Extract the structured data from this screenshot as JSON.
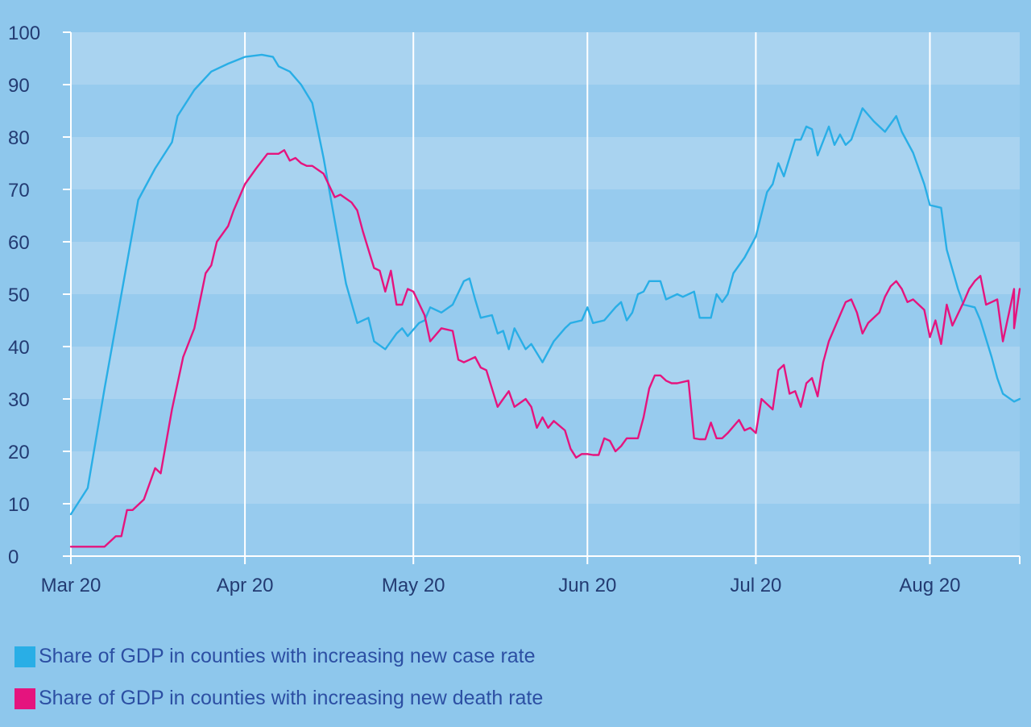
{
  "chart_data": {
    "type": "line",
    "title": "",
    "xlabel": "",
    "ylabel": "",
    "ylim": [
      0,
      100
    ],
    "yticks": [
      "0",
      "10",
      "20",
      "30",
      "40",
      "50",
      "60",
      "70",
      "80",
      "90",
      "100"
    ],
    "xticks": [
      "Mar 20",
      "Apr 20",
      "May 20",
      "Jun 20",
      "Jul 20",
      "Aug 20"
    ],
    "grid": "vertical lines at month starts, alternating horizontal bands",
    "legend_position": "bottom-left",
    "colors": {
      "background": "#8ec7ec",
      "band_light": "#a9d3f0",
      "band_dark": "#97cbee",
      "grid_line": "#ffffff",
      "case_series": "#29aee6",
      "death_series": "#e5147e",
      "text": "#233b72",
      "legend_text": "#2c4fa3"
    },
    "series": [
      {
        "name": "Share of GDP in counties with increasing new case rate",
        "color": "#29aee6",
        "points": [
          [
            "2020-03-01",
            8
          ],
          [
            "2020-03-04",
            13
          ],
          [
            "2020-03-07",
            32
          ],
          [
            "2020-03-10",
            50
          ],
          [
            "2020-03-13",
            68
          ],
          [
            "2020-03-16",
            74
          ],
          [
            "2020-03-19",
            79
          ],
          [
            "2020-03-20",
            84
          ],
          [
            "2020-03-23",
            89
          ],
          [
            "2020-03-26",
            92.5
          ],
          [
            "2020-03-29",
            94
          ],
          [
            "2020-04-01",
            95.3
          ],
          [
            "2020-04-04",
            95.7
          ],
          [
            "2020-04-06",
            95.3
          ],
          [
            "2020-04-07",
            93.5
          ],
          [
            "2020-04-09",
            92.5
          ],
          [
            "2020-04-11",
            90
          ],
          [
            "2020-04-13",
            86.5
          ],
          [
            "2020-04-15",
            76
          ],
          [
            "2020-04-17",
            64
          ],
          [
            "2020-04-19",
            52
          ],
          [
            "2020-04-21",
            44.5
          ],
          [
            "2020-04-23",
            45.5
          ],
          [
            "2020-04-24",
            41
          ],
          [
            "2020-04-26",
            39.5
          ],
          [
            "2020-04-28",
            42.5
          ],
          [
            "2020-04-29",
            43.5
          ],
          [
            "2020-04-30",
            42
          ],
          [
            "2020-05-02",
            44.5
          ],
          [
            "2020-05-03",
            45
          ],
          [
            "2020-05-04",
            47.5
          ],
          [
            "2020-05-06",
            46.5
          ],
          [
            "2020-05-08",
            48
          ],
          [
            "2020-05-10",
            52.5
          ],
          [
            "2020-05-11",
            53
          ],
          [
            "2020-05-12",
            49
          ],
          [
            "2020-05-13",
            45.5
          ],
          [
            "2020-05-15",
            46
          ],
          [
            "2020-05-16",
            42.5
          ],
          [
            "2020-05-17",
            43
          ],
          [
            "2020-05-18",
            39.5
          ],
          [
            "2020-05-19",
            43.5
          ],
          [
            "2020-05-21",
            39.5
          ],
          [
            "2020-05-22",
            40.5
          ],
          [
            "2020-05-24",
            37
          ],
          [
            "2020-05-26",
            41
          ],
          [
            "2020-05-28",
            43.5
          ],
          [
            "2020-05-29",
            44.5
          ],
          [
            "2020-05-31",
            45
          ],
          [
            "2020-06-01",
            47.5
          ],
          [
            "2020-06-02",
            44.5
          ],
          [
            "2020-06-04",
            45
          ],
          [
            "2020-06-06",
            47.5
          ],
          [
            "2020-06-07",
            48.5
          ],
          [
            "2020-06-08",
            45
          ],
          [
            "2020-06-09",
            46.5
          ],
          [
            "2020-06-10",
            50
          ],
          [
            "2020-06-11",
            50.5
          ],
          [
            "2020-06-12",
            52.5
          ],
          [
            "2020-06-14",
            52.5
          ],
          [
            "2020-06-15",
            49
          ],
          [
            "2020-06-17",
            50
          ],
          [
            "2020-06-18",
            49.5
          ],
          [
            "2020-06-20",
            50.5
          ],
          [
            "2020-06-21",
            45.5
          ],
          [
            "2020-06-23",
            45.5
          ],
          [
            "2020-06-24",
            50
          ],
          [
            "2020-06-25",
            48.5
          ],
          [
            "2020-06-26",
            50
          ],
          [
            "2020-06-27",
            54
          ],
          [
            "2020-06-29",
            57
          ],
          [
            "2020-07-01",
            61
          ],
          [
            "2020-07-03",
            69.5
          ],
          [
            "2020-07-04",
            71
          ],
          [
            "2020-07-05",
            75
          ],
          [
            "2020-07-06",
            72.5
          ],
          [
            "2020-07-07",
            76
          ],
          [
            "2020-07-08",
            79.5
          ],
          [
            "2020-07-09",
            79.5
          ],
          [
            "2020-07-10",
            82
          ],
          [
            "2020-07-11",
            81.5
          ],
          [
            "2020-07-12",
            76.5
          ],
          [
            "2020-07-14",
            82
          ],
          [
            "2020-07-15",
            78.5
          ],
          [
            "2020-07-16",
            80.5
          ],
          [
            "2020-07-17",
            78.5
          ],
          [
            "2020-07-18",
            79.5
          ],
          [
            "2020-07-20",
            85.5
          ],
          [
            "2020-07-22",
            83
          ],
          [
            "2020-07-24",
            81
          ],
          [
            "2020-07-26",
            84
          ],
          [
            "2020-07-27",
            81
          ],
          [
            "2020-07-29",
            77
          ],
          [
            "2020-07-31",
            71
          ],
          [
            "2020-08-01",
            67
          ],
          [
            "2020-08-03",
            66.5
          ],
          [
            "2020-08-04",
            58.5
          ],
          [
            "2020-08-06",
            51
          ],
          [
            "2020-08-07",
            48
          ],
          [
            "2020-08-09",
            47.5
          ],
          [
            "2020-08-10",
            45
          ],
          [
            "2020-08-12",
            38
          ],
          [
            "2020-08-13",
            34
          ],
          [
            "2020-08-14",
            31
          ],
          [
            "2020-08-16",
            29.5
          ],
          [
            "2020-08-17",
            30
          ]
        ]
      },
      {
        "name": "Share of GDP in counties with increasing new death rate",
        "color": "#e5147e",
        "points": [
          [
            "2020-03-01",
            1.8
          ],
          [
            "2020-03-07",
            1.8
          ],
          [
            "2020-03-09",
            3.8
          ],
          [
            "2020-03-10",
            3.8
          ],
          [
            "2020-03-11",
            8.8
          ],
          [
            "2020-03-12",
            8.8
          ],
          [
            "2020-03-14",
            10.8
          ],
          [
            "2020-03-16",
            16.8
          ],
          [
            "2020-03-17",
            15.8
          ],
          [
            "2020-03-19",
            28
          ],
          [
            "2020-03-21",
            38
          ],
          [
            "2020-03-23",
            43.5
          ],
          [
            "2020-03-25",
            54
          ],
          [
            "2020-03-26",
            55.5
          ],
          [
            "2020-03-27",
            60
          ],
          [
            "2020-03-29",
            63
          ],
          [
            "2020-03-30",
            66
          ],
          [
            "2020-04-01",
            71
          ],
          [
            "2020-04-03",
            74
          ],
          [
            "2020-04-05",
            76.8
          ],
          [
            "2020-04-06",
            76.8
          ],
          [
            "2020-04-07",
            76.8
          ],
          [
            "2020-04-08",
            77.5
          ],
          [
            "2020-04-09",
            75.5
          ],
          [
            "2020-04-10",
            76
          ],
          [
            "2020-04-11",
            75
          ],
          [
            "2020-04-12",
            74.5
          ],
          [
            "2020-04-13",
            74.5
          ],
          [
            "2020-04-15",
            73
          ],
          [
            "2020-04-17",
            68.5
          ],
          [
            "2020-04-18",
            69
          ],
          [
            "2020-04-20",
            67.5
          ],
          [
            "2020-04-21",
            66
          ],
          [
            "2020-04-22",
            62
          ],
          [
            "2020-04-24",
            55
          ],
          [
            "2020-04-25",
            54.5
          ],
          [
            "2020-04-26",
            50.5
          ],
          [
            "2020-04-27",
            54.5
          ],
          [
            "2020-04-28",
            48
          ],
          [
            "2020-04-29",
            48
          ],
          [
            "2020-04-30",
            51
          ],
          [
            "2020-05-01",
            50.5
          ],
          [
            "2020-05-03",
            46
          ],
          [
            "2020-05-04",
            41
          ],
          [
            "2020-05-06",
            43.5
          ],
          [
            "2020-05-08",
            43
          ],
          [
            "2020-05-09",
            37.5
          ],
          [
            "2020-05-10",
            37
          ],
          [
            "2020-05-11",
            37.5
          ],
          [
            "2020-05-12",
            38
          ],
          [
            "2020-05-13",
            36
          ],
          [
            "2020-05-14",
            35.5
          ],
          [
            "2020-05-16",
            28.5
          ],
          [
            "2020-05-17",
            30
          ],
          [
            "2020-05-18",
            31.5
          ],
          [
            "2020-05-19",
            28.5
          ],
          [
            "2020-05-21",
            30
          ],
          [
            "2020-05-22",
            28.5
          ],
          [
            "2020-05-23",
            24.5
          ],
          [
            "2020-05-24",
            26.5
          ],
          [
            "2020-05-25",
            24.5
          ],
          [
            "2020-05-26",
            25.8
          ],
          [
            "2020-05-28",
            24
          ],
          [
            "2020-05-29",
            20.5
          ],
          [
            "2020-05-30",
            18.8
          ],
          [
            "2020-05-31",
            19.5
          ],
          [
            "2020-06-01",
            19.5
          ],
          [
            "2020-06-02",
            19.3
          ],
          [
            "2020-06-03",
            19.3
          ],
          [
            "2020-06-04",
            22.5
          ],
          [
            "2020-06-05",
            22
          ],
          [
            "2020-06-06",
            20
          ],
          [
            "2020-06-07",
            21
          ],
          [
            "2020-06-08",
            22.5
          ],
          [
            "2020-06-10",
            22.5
          ],
          [
            "2020-06-11",
            26.5
          ],
          [
            "2020-06-12",
            32
          ],
          [
            "2020-06-13",
            34.5
          ],
          [
            "2020-06-14",
            34.5
          ],
          [
            "2020-06-15",
            33.5
          ],
          [
            "2020-06-16",
            33
          ],
          [
            "2020-06-17",
            33
          ],
          [
            "2020-06-19",
            33.5
          ],
          [
            "2020-06-20",
            22.5
          ],
          [
            "2020-06-21",
            22.3
          ],
          [
            "2020-06-22",
            22.3
          ],
          [
            "2020-06-23",
            25.5
          ],
          [
            "2020-06-24",
            22.5
          ],
          [
            "2020-06-25",
            22.5
          ],
          [
            "2020-06-26",
            23.5
          ],
          [
            "2020-06-28",
            26
          ],
          [
            "2020-06-29",
            24
          ],
          [
            "2020-06-30",
            24.5
          ],
          [
            "2020-07-01",
            23.5
          ],
          [
            "2020-07-02",
            30
          ],
          [
            "2020-07-04",
            28
          ],
          [
            "2020-07-05",
            35.5
          ],
          [
            "2020-07-06",
            36.5
          ],
          [
            "2020-07-07",
            31
          ],
          [
            "2020-07-08",
            31.5
          ],
          [
            "2020-07-09",
            28.5
          ],
          [
            "2020-07-10",
            33
          ],
          [
            "2020-07-11",
            34
          ],
          [
            "2020-07-12",
            30.5
          ],
          [
            "2020-07-13",
            37
          ],
          [
            "2020-07-14",
            41
          ],
          [
            "2020-07-16",
            46
          ],
          [
            "2020-07-17",
            48.5
          ],
          [
            "2020-07-18",
            49
          ],
          [
            "2020-07-19",
            46.5
          ],
          [
            "2020-07-20",
            42.5
          ],
          [
            "2020-07-21",
            44.5
          ],
          [
            "2020-07-23",
            46.5
          ],
          [
            "2020-07-24",
            49.5
          ],
          [
            "2020-07-25",
            51.5
          ],
          [
            "2020-07-26",
            52.5
          ],
          [
            "2020-07-27",
            51
          ],
          [
            "2020-07-28",
            48.5
          ],
          [
            "2020-07-29",
            49
          ],
          [
            "2020-07-31",
            47
          ],
          [
            "2020-08-01",
            41.8
          ],
          [
            "2020-08-02",
            45
          ],
          [
            "2020-08-03",
            40.5
          ],
          [
            "2020-08-04",
            48
          ],
          [
            "2020-08-05",
            44
          ],
          [
            "2020-08-07",
            48.5
          ],
          [
            "2020-08-08",
            51
          ],
          [
            "2020-08-09",
            52.5
          ],
          [
            "2020-08-10",
            53.5
          ],
          [
            "2020-08-11",
            48
          ],
          [
            "2020-08-12",
            48.5
          ],
          [
            "2020-08-13",
            49
          ],
          [
            "2020-08-14",
            41
          ],
          [
            "2020-08-15",
            46
          ],
          [
            "2020-08-16",
            51
          ],
          [
            "2020-08-16",
            43.5
          ],
          [
            "2020-08-17",
            51
          ]
        ]
      }
    ]
  }
}
